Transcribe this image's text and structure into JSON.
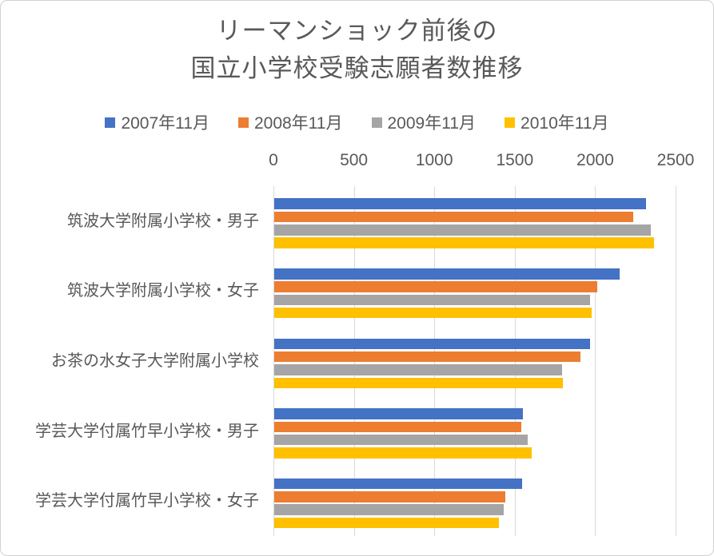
{
  "title": {
    "line1": "リーマンショック前後の",
    "line2": "国立小学校受験志願者数推移"
  },
  "chart_data": {
    "type": "bar",
    "orientation": "horizontal",
    "title": "リーマンショック前後の 国立小学校受験志願者数推移",
    "categories": [
      "筑波大学附属小学校・男子",
      "筑波大学附属小学校・女子",
      "お茶の水女子大学附属小学校",
      "学芸大学付属竹早小学校・男子",
      "学芸大学付属竹早小学校・女子"
    ],
    "series": [
      {
        "name": "2007年11月",
        "color": "#4472C4",
        "values": [
          2310,
          2145,
          1965,
          1545,
          1540
        ]
      },
      {
        "name": "2008年11月",
        "color": "#ED7D31",
        "values": [
          2230,
          2010,
          1905,
          1535,
          1435
        ]
      },
      {
        "name": "2009年11月",
        "color": "#A5A5A5",
        "values": [
          2340,
          1965,
          1790,
          1575,
          1425
        ]
      },
      {
        "name": "2010年11月",
        "color": "#FFC000",
        "values": [
          2360,
          1975,
          1795,
          1600,
          1395
        ]
      }
    ],
    "x_axis": {
      "min": 0,
      "max": 2500,
      "ticks": [
        0,
        500,
        1000,
        1500,
        2000,
        2500
      ]
    },
    "grid": true,
    "legend_position": "top",
    "xlabel": "",
    "ylabel": ""
  },
  "colors": {
    "text": "#595959",
    "gridline": "#D9D9D9",
    "border": "#D2D0D0",
    "background": "#FFFFFF"
  }
}
